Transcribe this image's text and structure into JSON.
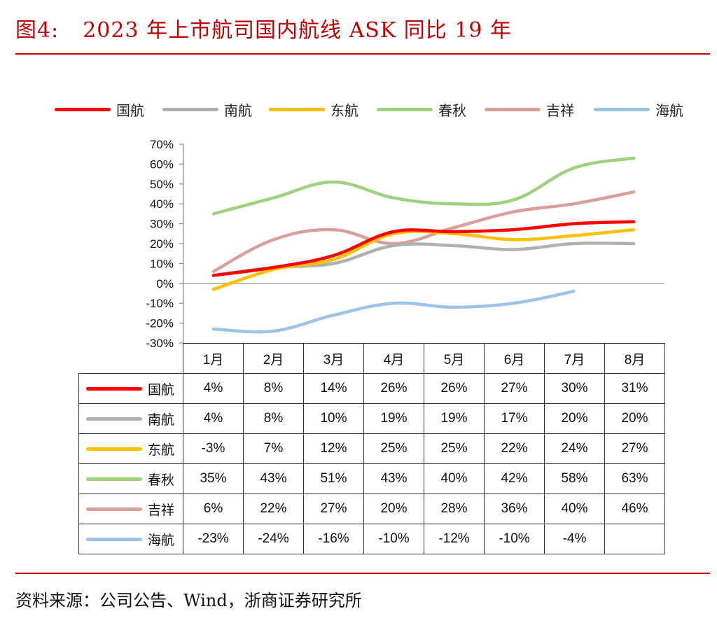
{
  "header": {
    "figure_num": "图4:",
    "title": "2023 年上市航司国内航线 ASK 同比 19 年"
  },
  "source": "资料来源：公司公告、Wind，浙商证券研究所",
  "colors": {
    "accent": "#c00000"
  },
  "chart_data": {
    "type": "line",
    "title": "2023 年上市航司国内航线 ASK 同比 19 年",
    "xlabel": "",
    "ylabel": "",
    "ylim": [
      -30,
      70
    ],
    "yticks": [
      "70%",
      "60%",
      "50%",
      "40%",
      "30%",
      "20%",
      "10%",
      "0%",
      "-10%",
      "-20%",
      "-30%"
    ],
    "ytick_values": [
      70,
      60,
      50,
      40,
      30,
      20,
      10,
      0,
      -10,
      -20,
      -30
    ],
    "categories": [
      "1月",
      "2月",
      "3月",
      "4月",
      "5月",
      "6月",
      "7月",
      "8月"
    ],
    "legend_position": "top",
    "grid": false,
    "series": [
      {
        "name": "国航",
        "color": "#ff0000",
        "values": [
          4,
          8,
          14,
          26,
          26,
          27,
          30,
          31
        ],
        "labels": [
          "4%",
          "8%",
          "14%",
          "26%",
          "26%",
          "27%",
          "30%",
          "31%"
        ]
      },
      {
        "name": "南航",
        "color": "#b0b0b0",
        "values": [
          4,
          8,
          10,
          19,
          19,
          17,
          20,
          20
        ],
        "labels": [
          "4%",
          "8%",
          "10%",
          "19%",
          "19%",
          "17%",
          "20%",
          "20%"
        ]
      },
      {
        "name": "东航",
        "color": "#ffc000",
        "values": [
          -3,
          7,
          12,
          25,
          25,
          22,
          24,
          27
        ],
        "labels": [
          "-3%",
          "7%",
          "12%",
          "25%",
          "25%",
          "22%",
          "24%",
          "27%"
        ]
      },
      {
        "name": "春秋",
        "color": "#9fd27f",
        "values": [
          35,
          43,
          51,
          43,
          40,
          42,
          58,
          63
        ],
        "labels": [
          "35%",
          "43%",
          "51%",
          "43%",
          "40%",
          "42%",
          "58%",
          "63%"
        ]
      },
      {
        "name": "吉祥",
        "color": "#d9a09b",
        "values": [
          6,
          22,
          27,
          20,
          28,
          36,
          40,
          46
        ],
        "labels": [
          "6%",
          "22%",
          "27%",
          "20%",
          "28%",
          "36%",
          "40%",
          "46%"
        ]
      },
      {
        "name": "海航",
        "color": "#9dc3e6",
        "values": [
          -23,
          -24,
          -16,
          -10,
          -12,
          -10,
          -4,
          null
        ],
        "labels": [
          "-23%",
          "-24%",
          "-16%",
          "-10%",
          "-12%",
          "-10%",
          "-4%",
          ""
        ]
      }
    ]
  }
}
